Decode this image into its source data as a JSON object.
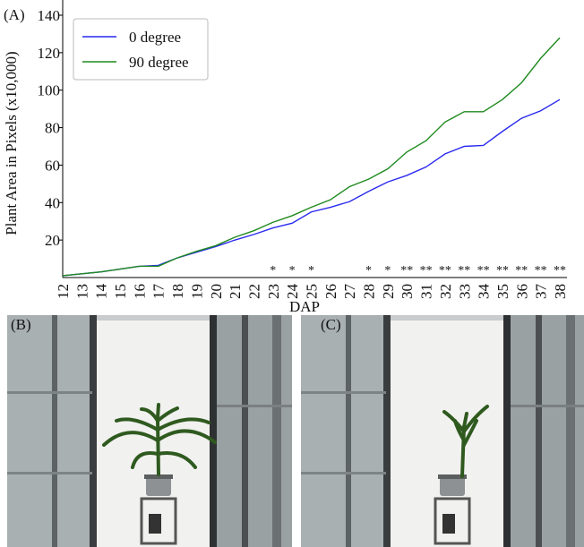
{
  "chart_data": {
    "type": "line",
    "panel_label": "(A)",
    "x_label": "DAP",
    "y_label": "Plant Area in Pixels (x10,000)",
    "categories": [
      "12",
      "13",
      "14",
      "15",
      "16",
      "17",
      "18",
      "19",
      "20",
      "21",
      "22",
      "23",
      "24",
      "25",
      "26",
      "27",
      "28",
      "29",
      "30",
      "31",
      "32",
      "33",
      "34",
      "35",
      "36",
      "37",
      "38"
    ],
    "series": [
      {
        "name": "0 degree",
        "color": "#2a2aee",
        "values": [
          1,
          2,
          3,
          4.5,
          6,
          6.5,
          10.5,
          13.5,
          16.5,
          20,
          23,
          26.5,
          29,
          35,
          37.5,
          40.5,
          46,
          51,
          54.5,
          59,
          66,
          70,
          70.5,
          78,
          85,
          89,
          95
        ]
      },
      {
        "name": "90 degree",
        "color": "#1f8a1f",
        "values": [
          1,
          2,
          3,
          4.5,
          6,
          6,
          10.5,
          14,
          17,
          21.5,
          25,
          29.5,
          33,
          37.5,
          41.5,
          48.5,
          52.5,
          58,
          67,
          73,
          83,
          88.5,
          88.5,
          95,
          104,
          117,
          128
        ]
      }
    ],
    "significance": [
      null,
      null,
      null,
      null,
      null,
      null,
      null,
      null,
      null,
      null,
      null,
      "*",
      "*",
      "*",
      null,
      null,
      "*",
      "*",
      "**",
      "**",
      "**",
      "**",
      "**",
      "**",
      "**",
      "**",
      "**"
    ],
    "ylim": [
      0,
      140
    ],
    "yticks": [
      20,
      40,
      60,
      80,
      100,
      120,
      140
    ],
    "legend": "upper left"
  },
  "photos": [
    {
      "label": "(B)"
    },
    {
      "label": "(C)"
    }
  ]
}
